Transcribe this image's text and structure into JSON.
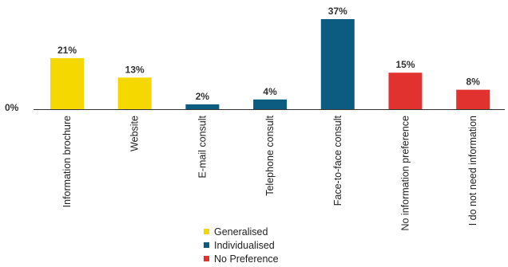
{
  "chart_data": {
    "type": "bar",
    "title": "",
    "xlabel": "",
    "ylabel": "",
    "ylim": [
      0,
      37
    ],
    "y_tick_label": "0%",
    "grid": false,
    "legend_position": "bottom-center",
    "categories": [
      "Information brochure",
      "Website",
      "E-mail consult",
      "Telephone consult",
      "Face-to-face consult",
      "No information preference",
      "I do not need information"
    ],
    "values": [
      21,
      13,
      2,
      4,
      37,
      15,
      8
    ],
    "value_labels": [
      "21%",
      "13%",
      "2%",
      "4%",
      "37%",
      "15%",
      "8%"
    ],
    "groups": [
      0,
      0,
      1,
      1,
      1,
      2,
      2
    ],
    "legend": [
      {
        "name": "Generalised",
        "color": "#F5D800"
      },
      {
        "name": "Individualised",
        "color": "#0B5C80"
      },
      {
        "name": "No Preference",
        "color": "#E2322F"
      }
    ]
  }
}
